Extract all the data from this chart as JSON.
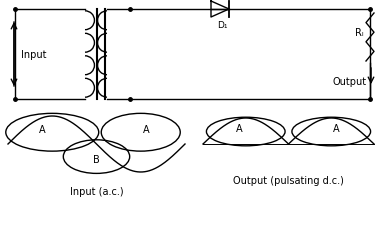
{
  "bg_color": "#ffffff",
  "line_color": "#000000",
  "input_label": "Input",
  "output_label": "Output",
  "d1_label": "D₁",
  "rl_label": "Rₗ",
  "input_ac_label": "Input (a.c.)",
  "output_dc_label": "Output (pulsating d.c.)",
  "label_A": "A",
  "label_B": "B",
  "figsize": [
    3.82,
    2.3
  ],
  "dpi": 100
}
